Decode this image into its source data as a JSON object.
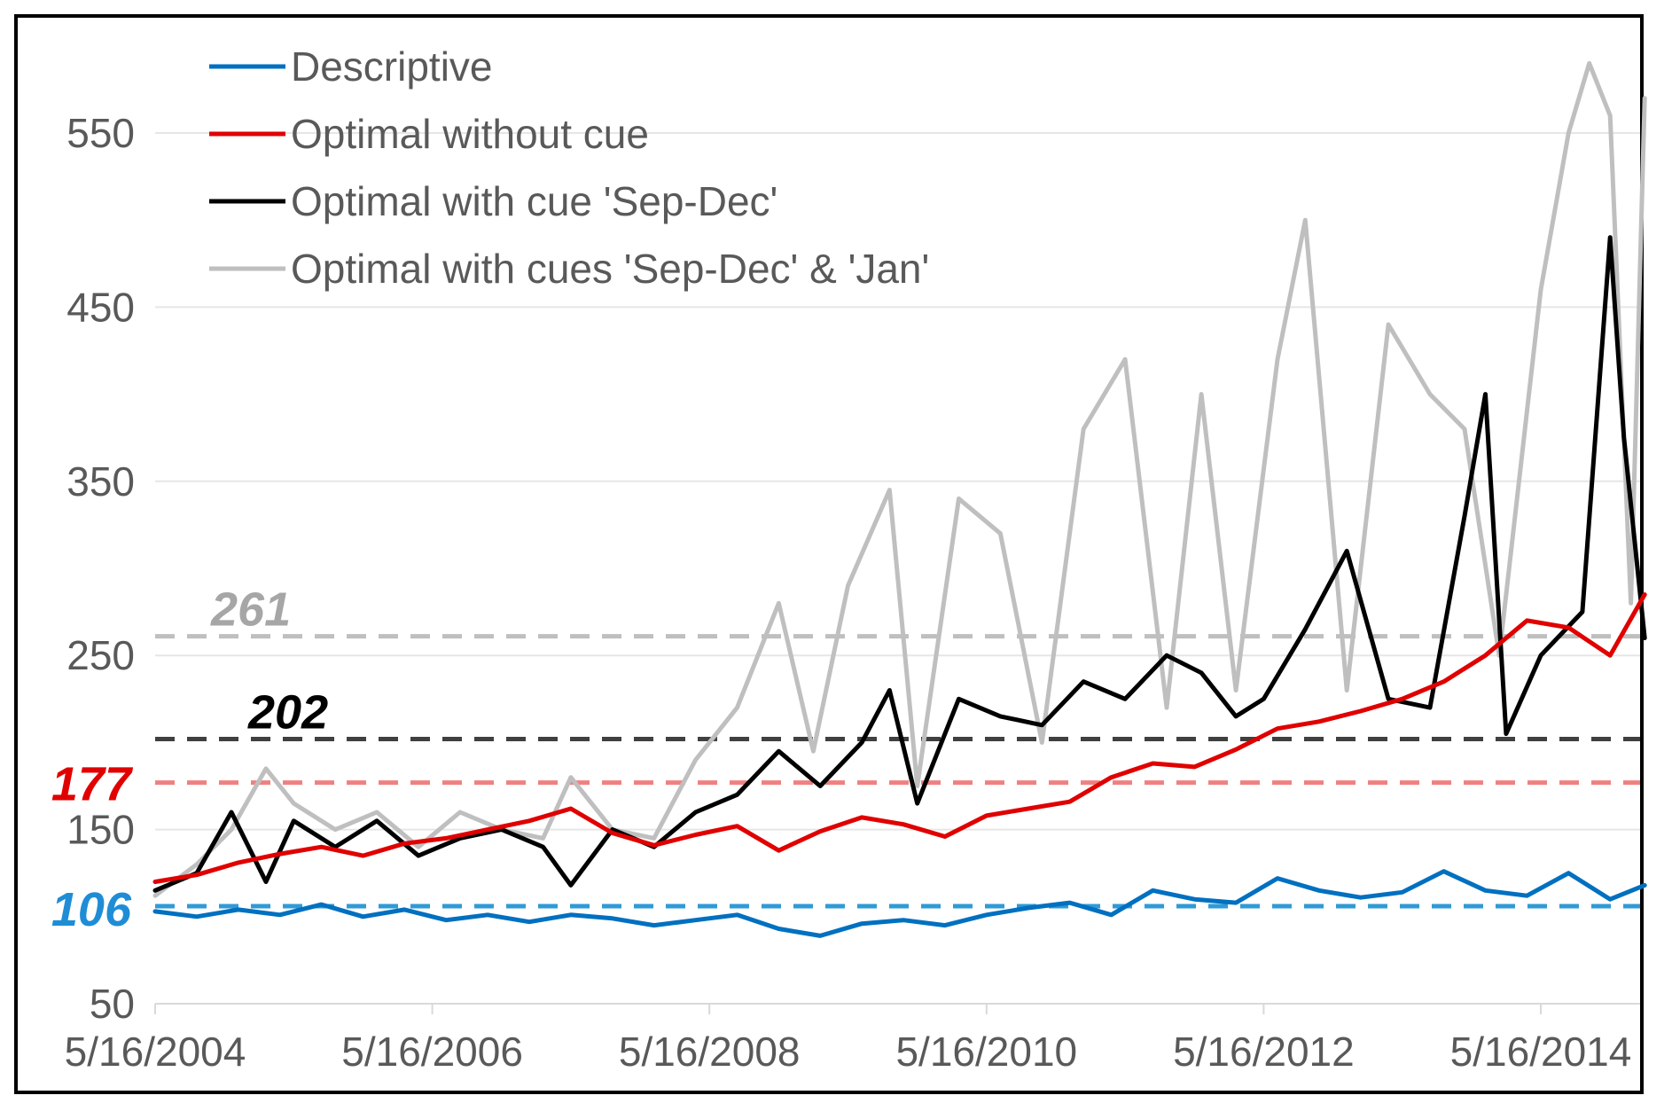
{
  "chart_data": {
    "type": "line",
    "title": "",
    "xlabel": "",
    "ylabel": "",
    "ylim": [
      50,
      600
    ],
    "xlim": [
      2004.0,
      2014.8
    ],
    "yticks": [
      50,
      150,
      250,
      350,
      450,
      550
    ],
    "y_tick_labels": [
      "50",
      "150",
      "250",
      "350",
      "450",
      "550"
    ],
    "xticks": [
      2004.0,
      2006.0,
      2008.0,
      2010.0,
      2012.0,
      2014.0
    ],
    "x_tick_labels": [
      "5/16/2004",
      "5/16/2006",
      "5/16/2008",
      "5/16/2010",
      "5/16/2012",
      "5/16/2014"
    ],
    "grid": true,
    "legend_position": "top-left",
    "series": [
      {
        "name": "Descriptive",
        "color": "#0070C0",
        "x": [
          2004.0,
          2004.3,
          2004.6,
          2004.9,
          2005.2,
          2005.5,
          2005.8,
          2006.1,
          2006.4,
          2006.7,
          2007.0,
          2007.3,
          2007.6,
          2007.9,
          2008.2,
          2008.5,
          2008.8,
          2009.1,
          2009.4,
          2009.7,
          2010.0,
          2010.3,
          2010.6,
          2010.9,
          2011.2,
          2011.5,
          2011.8,
          2012.1,
          2012.4,
          2012.7,
          2013.0,
          2013.3,
          2013.6,
          2013.9,
          2014.2,
          2014.5,
          2014.75
        ],
        "values": [
          103,
          100,
          104,
          101,
          107,
          100,
          104,
          98,
          101,
          97,
          101,
          99,
          95,
          98,
          101,
          93,
          89,
          96,
          98,
          95,
          101,
          105,
          108,
          101,
          115,
          110,
          108,
          122,
          115,
          111,
          114,
          126,
          115,
          112,
          125,
          110,
          118
        ]
      },
      {
        "name": "Optimal without cue",
        "color": "#E00000",
        "x": [
          2004.0,
          2004.3,
          2004.6,
          2004.9,
          2005.2,
          2005.5,
          2005.8,
          2006.1,
          2006.4,
          2006.7,
          2007.0,
          2007.3,
          2007.6,
          2007.9,
          2008.2,
          2008.5,
          2008.8,
          2009.1,
          2009.4,
          2009.7,
          2010.0,
          2010.3,
          2010.6,
          2010.9,
          2011.2,
          2011.5,
          2011.8,
          2012.1,
          2012.4,
          2012.7,
          2013.0,
          2013.3,
          2013.6,
          2013.9,
          2014.2,
          2014.5,
          2014.75
        ],
        "values": [
          120,
          124,
          131,
          136,
          140,
          135,
          142,
          145,
          150,
          155,
          162,
          148,
          141,
          147,
          152,
          138,
          149,
          157,
          153,
          146,
          158,
          162,
          166,
          180,
          188,
          186,
          196,
          208,
          212,
          218,
          225,
          235,
          250,
          270,
          266,
          250,
          285
        ]
      },
      {
        "name": "Optimal with cue 'Sep-Dec'",
        "color": "#000000",
        "x": [
          2004.0,
          2004.3,
          2004.55,
          2004.8,
          2005.0,
          2005.3,
          2005.6,
          2005.9,
          2006.2,
          2006.5,
          2006.8,
          2007.0,
          2007.3,
          2007.6,
          2007.9,
          2008.2,
          2008.5,
          2008.8,
          2009.1,
          2009.3,
          2009.5,
          2009.8,
          2010.1,
          2010.4,
          2010.7,
          2011.0,
          2011.3,
          2011.55,
          2011.8,
          2012.0,
          2012.3,
          2012.6,
          2012.9,
          2013.2,
          2013.45,
          2013.6,
          2013.75,
          2014.0,
          2014.3,
          2014.5,
          2014.6,
          2014.75
        ],
        "values": [
          115,
          125,
          160,
          120,
          155,
          140,
          155,
          135,
          145,
          150,
          140,
          118,
          150,
          140,
          160,
          170,
          195,
          175,
          200,
          230,
          165,
          225,
          215,
          210,
          235,
          225,
          250,
          240,
          215,
          225,
          265,
          310,
          225,
          220,
          330,
          400,
          205,
          250,
          275,
          490,
          375,
          260
        ]
      },
      {
        "name": "Optimal with cues 'Sep-Dec' & 'Jan'",
        "color": "#BFBFBF",
        "x": [
          2004.0,
          2004.3,
          2004.55,
          2004.8,
          2005.0,
          2005.3,
          2005.6,
          2005.9,
          2006.2,
          2006.5,
          2006.8,
          2007.0,
          2007.3,
          2007.6,
          2007.9,
          2008.2,
          2008.5,
          2008.75,
          2009.0,
          2009.3,
          2009.5,
          2009.8,
          2010.1,
          2010.4,
          2010.7,
          2011.0,
          2011.3,
          2011.55,
          2011.8,
          2012.1,
          2012.3,
          2012.6,
          2012.9,
          2013.2,
          2013.45,
          2013.7,
          2014.0,
          2014.2,
          2014.35,
          2014.5,
          2014.65,
          2014.75
        ],
        "values": [
          112,
          130,
          150,
          185,
          165,
          150,
          160,
          140,
          160,
          150,
          145,
          180,
          150,
          145,
          190,
          220,
          280,
          195,
          290,
          345,
          175,
          340,
          320,
          200,
          380,
          420,
          220,
          400,
          230,
          420,
          500,
          230,
          440,
          400,
          380,
          250,
          460,
          550,
          590,
          560,
          280,
          570
        ]
      }
    ],
    "reference_lines": [
      {
        "value": 261,
        "label": "261",
        "color": "#BFBFBF",
        "label_color": "#A6A6A6"
      },
      {
        "value": 202,
        "label": "202",
        "color": "#404040",
        "label_color": "#000000"
      },
      {
        "value": 177,
        "label": "177",
        "color": "#F08080",
        "label_color": "#E00000"
      },
      {
        "value": 106,
        "label": "106",
        "color": "#2E9BD6",
        "label_color": "#1F8DD6"
      }
    ]
  }
}
